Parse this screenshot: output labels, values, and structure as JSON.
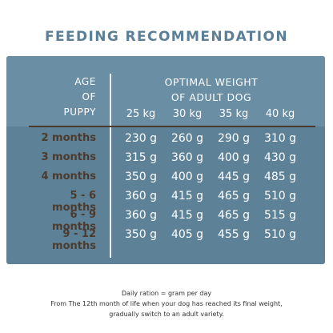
{
  "title": "FEEDING RECOMMENDATION",
  "age_header": [
    "AGE",
    "OF",
    "PUPPY"
  ],
  "weight_header": [
    "OPTIMAL WEIGHT",
    "OF ADULT DOG"
  ],
  "columns": [
    "25 kg",
    "30 kg",
    "35 kg",
    "40 kg"
  ],
  "rows": [
    {
      "age": "2 months",
      "values": [
        "230 g",
        "260 g",
        "290 g",
        "310 g"
      ]
    },
    {
      "age": "3 months",
      "values": [
        "315 g",
        "360 g",
        "400 g",
        "430 g"
      ]
    },
    {
      "age": "4 months",
      "values": [
        "350 g",
        "400 g",
        "445 g",
        "485 g"
      ]
    },
    {
      "age": "5 - 6 months",
      "values": [
        "360 g",
        "415 g",
        "465 g",
        "510 g"
      ]
    },
    {
      "age": "6 - 9 months",
      "values": [
        "360 g",
        "415 g",
        "465 g",
        "515 g"
      ]
    },
    {
      "age": "9 - 12 months",
      "values": [
        "350 g",
        "405 g",
        "455 g",
        "510 g"
      ]
    }
  ],
  "footer": [
    "Daily ration = gram per day",
    "From The 12th month of life when your dog has reached its final weight,",
    "gradually switch to an adult variety."
  ]
}
